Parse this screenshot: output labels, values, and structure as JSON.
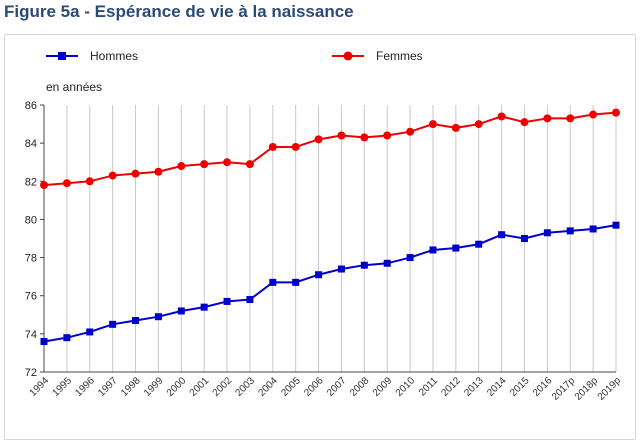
{
  "title": "Figure 5a - Espérance de vie à la naissance",
  "chart_data": {
    "type": "line",
    "title": "Figure 5a - Espérance de vie à la naissance",
    "ylabel": "en années",
    "xlabel": "",
    "ylim": [
      72,
      86
    ],
    "yticks": [
      72,
      74,
      76,
      78,
      80,
      82,
      84,
      86
    ],
    "grid": "vertical",
    "legend_position": "top",
    "categories": [
      "1994",
      "1995",
      "1996",
      "1997",
      "1998",
      "1999",
      "2000",
      "2001",
      "2002",
      "2003",
      "2004",
      "2005",
      "2006",
      "2007",
      "2008",
      "2009",
      "2010",
      "2011",
      "2012",
      "2013",
      "2014",
      "2015",
      "2016",
      "2017p",
      "2018p",
      "2019p"
    ],
    "series": [
      {
        "name": "Hommes",
        "color": "#0000cc",
        "marker": "square",
        "values": [
          73.6,
          73.8,
          74.1,
          74.5,
          74.7,
          74.9,
          75.2,
          75.4,
          75.7,
          75.8,
          76.7,
          76.7,
          77.1,
          77.4,
          77.6,
          77.7,
          78.0,
          78.4,
          78.5,
          78.7,
          79.2,
          79.0,
          79.3,
          79.4,
          79.5,
          79.7
        ]
      },
      {
        "name": "Femmes",
        "color": "#ee0000",
        "marker": "circle",
        "values": [
          81.8,
          81.9,
          82.0,
          82.3,
          82.4,
          82.5,
          82.8,
          82.9,
          83.0,
          82.9,
          83.8,
          83.8,
          84.2,
          84.4,
          84.3,
          84.4,
          84.6,
          85.0,
          84.8,
          85.0,
          85.4,
          85.1,
          85.3,
          85.3,
          85.5,
          85.6
        ]
      }
    ]
  }
}
